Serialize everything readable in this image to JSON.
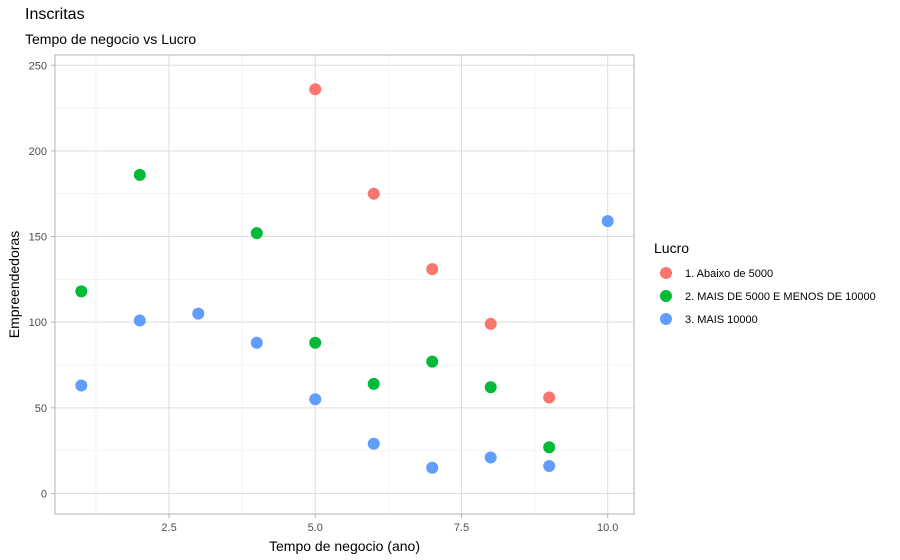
{
  "chart_data": {
    "type": "scatter",
    "title": "Inscritas",
    "subtitle": "Tempo de negocio vs Lucro",
    "xlabel": "Tempo de negocio (ano)",
    "ylabel": "Empreendedoras",
    "xlim": [
      0.55,
      10.45
    ],
    "ylim": [
      -12,
      256
    ],
    "x_ticks": [
      2.5,
      5.0,
      7.5,
      10.0
    ],
    "x_tick_labels": [
      "2.5",
      "5.0",
      "7.5",
      "10.0"
    ],
    "y_ticks": [
      0,
      50,
      100,
      150,
      200,
      250
    ],
    "y_tick_labels": [
      "0",
      "50",
      "100",
      "150",
      "200",
      "250"
    ],
    "grid": true,
    "legend": {
      "title": "Lucro",
      "placement": "right"
    },
    "series": [
      {
        "name": "1. Abaixo de 5000",
        "color": "#F8766D",
        "points": [
          {
            "x": 5,
            "y": 236
          },
          {
            "x": 6,
            "y": 175
          },
          {
            "x": 7,
            "y": 131
          },
          {
            "x": 8,
            "y": 99
          },
          {
            "x": 9,
            "y": 56
          }
        ]
      },
      {
        "name": "2. MAIS DE 5000 E MENOS DE 10000",
        "color": "#00BA38",
        "points": [
          {
            "x": 1,
            "y": 118
          },
          {
            "x": 2,
            "y": 186
          },
          {
            "x": 4,
            "y": 152
          },
          {
            "x": 5,
            "y": 88
          },
          {
            "x": 6,
            "y": 64
          },
          {
            "x": 7,
            "y": 77
          },
          {
            "x": 8,
            "y": 62
          },
          {
            "x": 9,
            "y": 27
          }
        ]
      },
      {
        "name": "3. MAIS 10000",
        "color": "#619CFF",
        "points": [
          {
            "x": 1,
            "y": 63
          },
          {
            "x": 2,
            "y": 101
          },
          {
            "x": 3,
            "y": 105
          },
          {
            "x": 4,
            "y": 88
          },
          {
            "x": 5,
            "y": 55
          },
          {
            "x": 6,
            "y": 29
          },
          {
            "x": 7,
            "y": 15
          },
          {
            "x": 8,
            "y": 21
          },
          {
            "x": 9,
            "y": 16
          },
          {
            "x": 10,
            "y": 159
          }
        ]
      }
    ]
  }
}
